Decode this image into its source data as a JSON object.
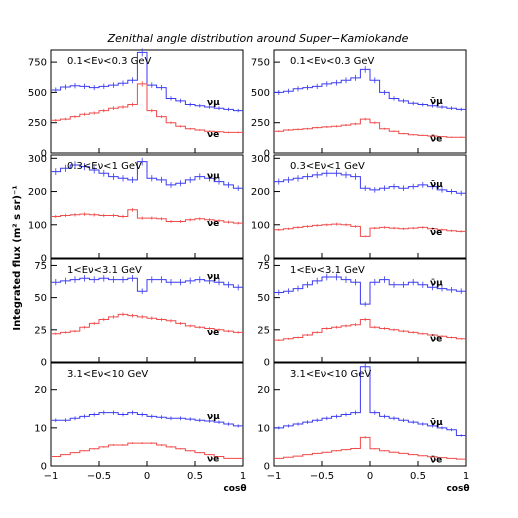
{
  "chart_data": {
    "type": "line",
    "title": "Zenithal angle distribution around Super−Kamiokande",
    "ylabel": "Integrated flux (m² s sr)⁻¹",
    "xlabel": "cosθ",
    "x_edges": [
      -1,
      -0.9,
      -0.8,
      -0.7,
      -0.6,
      -0.5,
      -0.4,
      -0.3,
      -0.2,
      -0.1,
      0,
      0.1,
      0.2,
      0.3,
      0.4,
      0.5,
      0.6,
      0.7,
      0.8,
      0.9,
      1
    ],
    "xlim": [
      -1,
      1
    ],
    "x_ticks": [
      -1,
      -0.5,
      0,
      0.5,
      1
    ],
    "x_tick_labels": [
      "−1",
      "−0.5",
      "0",
      "0.5",
      "1"
    ],
    "colors": {
      "mu": "#3b3bf0",
      "e": "#f04a4a"
    },
    "panels": [
      {
        "label": "0.1<Eν<0.3 GeV",
        "ylim": [
          0,
          850
        ],
        "yticks": [
          0,
          250,
          500,
          750
        ],
        "series": [
          {
            "name": "νμ",
            "values": [
              520,
              545,
              555,
              550,
              540,
              550,
              560,
              575,
              600,
              830,
              560,
              540,
              450,
              430,
              400,
              390,
              380,
              370,
              360,
              350
            ]
          },
          {
            "name": "νe",
            "values": [
              270,
              280,
              300,
              320,
              330,
              350,
              370,
              380,
              400,
              570,
              350,
              300,
              250,
              220,
              200,
              190,
              180,
              175,
              170,
              170
            ]
          }
        ]
      },
      {
        "label": "0.1<Eν<0.3 GeV",
        "ylim": [
          0,
          850
        ],
        "yticks": [
          0,
          250,
          500,
          750
        ],
        "series": [
          {
            "name": "ν̄μ",
            "values": [
              500,
              510,
              530,
              540,
              550,
              570,
              580,
              600,
              620,
              690,
              600,
              500,
              450,
              430,
              410,
              400,
              390,
              380,
              370,
              360
            ]
          },
          {
            "name": "ν̄e",
            "values": [
              180,
              190,
              195,
              200,
              210,
              215,
              220,
              230,
              240,
              280,
              250,
              200,
              180,
              160,
              150,
              145,
              140,
              135,
              130,
              130
            ]
          }
        ]
      },
      {
        "label": "0.3<Eν<1 GeV",
        "ylim": [
          0,
          310
        ],
        "yticks": [
          0,
          100,
          200,
          300
        ],
        "series": [
          {
            "name": "νμ",
            "values": [
              260,
              270,
              280,
              275,
              265,
              255,
              245,
              240,
              235,
              290,
              240,
              235,
              220,
              225,
              235,
              245,
              240,
              230,
              220,
              210
            ]
          },
          {
            "name": "νe",
            "values": [
              125,
              128,
              130,
              132,
              130,
              128,
              128,
              125,
              145,
              120,
              120,
              118,
              110,
              110,
              115,
              118,
              115,
              112,
              108,
              105
            ]
          }
        ]
      },
      {
        "label": "0.3<Eν<1 GeV",
        "ylim": [
          0,
          310
        ],
        "yticks": [
          0,
          100,
          200,
          300
        ],
        "series": [
          {
            "name": "ν̄μ",
            "values": [
              230,
              235,
              240,
              245,
              250,
              255,
              255,
              250,
              245,
              210,
              205,
              210,
              215,
              210,
              215,
              220,
              215,
              205,
              200,
              195
            ]
          },
          {
            "name": "ν̄e",
            "values": [
              85,
              88,
              92,
              95,
              98,
              100,
              102,
              100,
              95,
              65,
              90,
              92,
              90,
              88,
              90,
              92,
              88,
              85,
              82,
              80
            ]
          }
        ]
      },
      {
        "label": "1<Eν<3.1 GeV",
        "ylim": [
          0,
          80
        ],
        "yticks": [
          0,
          25,
          50,
          75
        ],
        "series": [
          {
            "name": "νμ",
            "values": [
              62,
              63,
              64,
              65,
              64,
              65,
              64,
              64,
              65,
              55,
              64,
              64,
              62,
              62,
              63,
              64,
              63,
              62,
              60,
              58
            ]
          },
          {
            "name": "νe",
            "values": [
              22,
              23,
              24,
              27,
              30,
              33,
              35,
              37,
              36,
              35,
              34,
              33,
              32,
              30,
              28,
              27,
              26,
              25,
              24,
              23
            ]
          }
        ]
      },
      {
        "label": "1<Eν<3.1 GeV",
        "ylim": [
          0,
          80
        ],
        "yticks": [
          0,
          25,
          50,
          75
        ],
        "series": [
          {
            "name": "ν̄μ",
            "values": [
              54,
              55,
              57,
              60,
              63,
              66,
              66,
              64,
              62,
              45,
              62,
              64,
              60,
              60,
              62,
              60,
              58,
              57,
              56,
              55
            ]
          },
          {
            "name": "ν̄e",
            "values": [
              17,
              18,
              19,
              21,
              23,
              26,
              27,
              28,
              29,
              33,
              27,
              26,
              25,
              24,
              23,
              22,
              21,
              20,
              19,
              18
            ]
          }
        ]
      },
      {
        "label": "3.1<Eν<10 GeV",
        "ylim": [
          0,
          27
        ],
        "yticks": [
          0,
          10,
          20
        ],
        "series": [
          {
            "name": "νμ",
            "values": [
              12,
              12,
              12.5,
              13,
              13.5,
              14,
              14,
              13.5,
              14,
              13.5,
              13,
              12.8,
              12.5,
              12.5,
              12.3,
              12,
              11.8,
              11.5,
              11,
              10.5
            ]
          },
          {
            "name": "νe",
            "values": [
              2.5,
              3,
              3.5,
              4,
              4.5,
              5,
              5.5,
              5.5,
              6,
              6,
              6,
              5.5,
              5,
              4.5,
              4,
              3.5,
              3,
              2.5,
              2,
              2
            ]
          }
        ]
      },
      {
        "label": "3.1<Eν<10 GeV",
        "ylim": [
          0,
          27
        ],
        "yticks": [
          0,
          10,
          20
        ],
        "series": [
          {
            "name": "ν̄μ",
            "values": [
              10,
              10.5,
              11,
              11.5,
              12,
              12.5,
              13,
              13.5,
              14,
              26,
              14,
              13,
              12.5,
              12,
              11.5,
              11,
              10.5,
              10,
              9.5,
              8
            ]
          },
          {
            "name": "ν̄e",
            "values": [
              2,
              2.3,
              2.6,
              3,
              3.3,
              3.6,
              4,
              4.3,
              4.6,
              7.5,
              4.5,
              4,
              3.6,
              3.3,
              3,
              2.7,
              2.4,
              2.2,
              2,
              1.8
            ]
          }
        ]
      }
    ]
  }
}
